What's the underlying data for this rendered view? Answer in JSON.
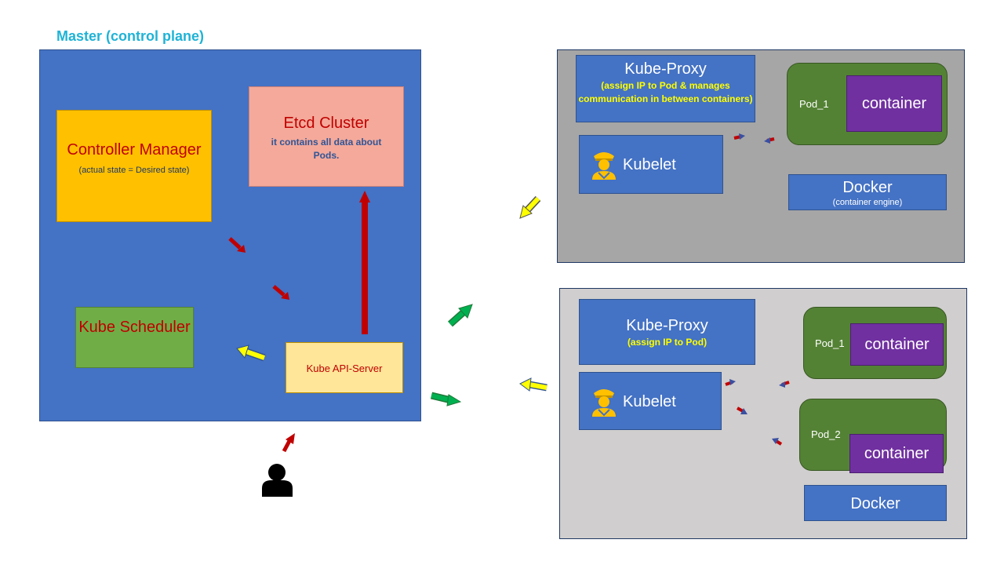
{
  "master": {
    "title": "Master (control plane)",
    "controller_manager": {
      "title": "Controller Manager",
      "subtitle": "(actual state = Desired state)"
    },
    "etcd": {
      "title": "Etcd Cluster",
      "subtitle": "it contains all data about Pods."
    },
    "scheduler": {
      "title": "Kube Scheduler"
    },
    "api_server": {
      "title": "Kube API-Server"
    }
  },
  "worker1": {
    "kube_proxy": {
      "title": "Kube-Proxy",
      "subtitle": "(assign IP to Pod & manages communication in between containers)"
    },
    "kubelet": {
      "title": "Kubelet"
    },
    "pods": [
      {
        "label": "Pod_1",
        "container": "container"
      }
    ],
    "docker": {
      "title": "Docker",
      "subtitle": "(container engine)"
    }
  },
  "worker2": {
    "kube_proxy": {
      "title": "Kube-Proxy",
      "subtitle": "(assign IP to Pod)"
    },
    "kubelet": {
      "title": "Kubelet"
    },
    "pods": [
      {
        "label": "Pod_1",
        "container": "container"
      },
      {
        "label": "Pod_2",
        "container": "container"
      }
    ],
    "docker": {
      "title": "Docker"
    }
  },
  "icons": {
    "user": "person-icon",
    "kubelet": "officer-icon"
  },
  "colors": {
    "master_bg": "#4472c4",
    "title": "#1fb3d6",
    "controller": "#ffc000",
    "etcd": "#f4a99a",
    "scheduler": "#70ad47",
    "api_server": "#ffe699",
    "pod": "#548235",
    "container": "#7030a0",
    "arrow_red": "#c00000",
    "arrow_yellow": "#ffff00",
    "arrow_green": "#00b050"
  }
}
